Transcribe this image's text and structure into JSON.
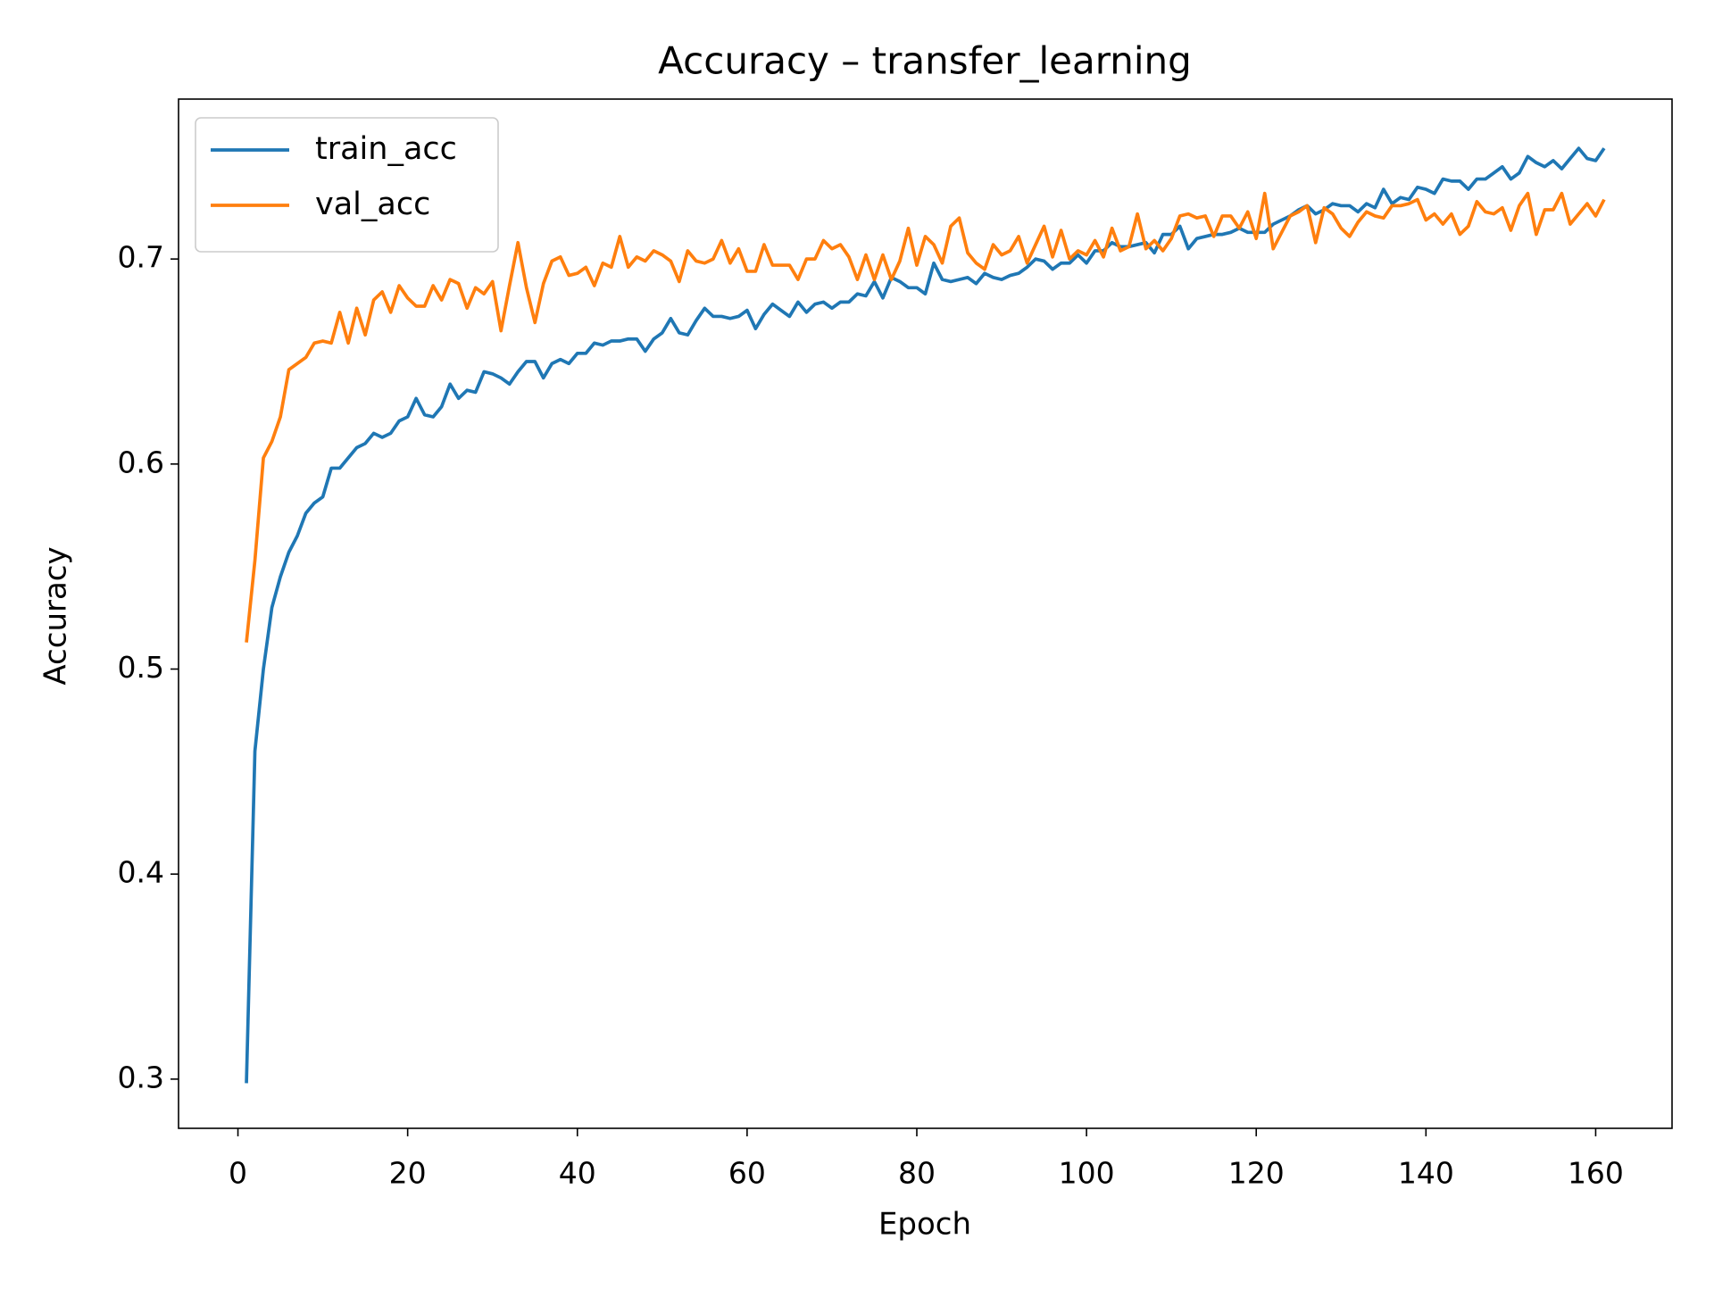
{
  "chart_data": {
    "type": "line",
    "title": "Accuracy – transfer_learning",
    "xlabel": "Epoch",
    "ylabel": "Accuracy",
    "x": [
      1,
      2,
      3,
      4,
      5,
      6,
      7,
      8,
      9,
      10,
      11,
      12,
      13,
      14,
      15,
      16,
      17,
      18,
      19,
      20,
      21,
      22,
      23,
      24,
      25,
      26,
      27,
      28,
      29,
      30,
      31,
      32,
      33,
      34,
      35,
      36,
      37,
      38,
      39,
      40,
      41,
      42,
      43,
      44,
      45,
      46,
      47,
      48,
      49,
      50,
      51,
      52,
      53,
      54,
      55,
      56,
      57,
      58,
      59,
      60,
      61,
      62,
      63,
      64,
      65,
      66,
      67,
      68,
      69,
      70,
      71,
      72,
      73,
      74,
      75,
      76,
      77,
      78,
      79,
      80,
      81,
      82,
      83,
      84,
      85,
      86,
      87,
      88,
      89,
      90,
      91,
      92,
      93,
      94,
      95,
      96,
      97,
      98,
      99,
      100,
      101,
      102,
      103,
      104,
      105,
      106,
      107,
      108,
      109,
      110,
      111,
      112,
      113,
      114,
      115,
      116,
      117,
      118,
      119,
      120,
      121,
      122,
      123,
      124,
      125,
      126,
      127,
      128,
      129,
      130,
      131,
      132,
      133,
      134,
      135,
      136,
      137,
      138,
      139,
      140,
      141,
      142,
      143,
      144,
      145,
      146,
      147,
      148,
      149,
      150,
      151,
      152,
      153,
      154,
      155,
      156,
      157,
      158,
      159,
      160,
      161
    ],
    "series": [
      {
        "name": "train_acc",
        "color": "#1f77b4",
        "values": [
          0.298,
          0.46,
          0.5,
          0.53,
          0.545,
          0.557,
          0.565,
          0.576,
          0.581,
          0.584,
          0.598,
          0.598,
          0.603,
          0.608,
          0.61,
          0.615,
          0.613,
          0.615,
          0.621,
          0.623,
          0.632,
          0.624,
          0.623,
          0.628,
          0.639,
          0.632,
          0.636,
          0.635,
          0.645,
          0.644,
          0.642,
          0.639,
          0.645,
          0.65,
          0.65,
          0.642,
          0.649,
          0.651,
          0.649,
          0.654,
          0.654,
          0.659,
          0.658,
          0.66,
          0.66,
          0.661,
          0.661,
          0.655,
          0.661,
          0.664,
          0.671,
          0.664,
          0.663,
          0.67,
          0.676,
          0.672,
          0.672,
          0.671,
          0.672,
          0.675,
          0.666,
          0.673,
          0.678,
          0.675,
          0.672,
          0.679,
          0.674,
          0.678,
          0.679,
          0.676,
          0.679,
          0.679,
          0.683,
          0.682,
          0.689,
          0.681,
          0.691,
          0.689,
          0.686,
          0.686,
          0.683,
          0.698,
          0.69,
          0.689,
          0.69,
          0.691,
          0.688,
          0.693,
          0.691,
          0.69,
          0.692,
          0.693,
          0.696,
          0.7,
          0.699,
          0.695,
          0.698,
          0.698,
          0.702,
          0.698,
          0.704,
          0.704,
          0.708,
          0.706,
          0.706,
          0.707,
          0.708,
          0.703,
          0.712,
          0.712,
          0.716,
          0.705,
          0.71,
          0.711,
          0.712,
          0.712,
          0.713,
          0.715,
          0.713,
          0.713,
          0.713,
          0.717,
          0.719,
          0.721,
          0.724,
          0.726,
          0.722,
          0.724,
          0.727,
          0.726,
          0.726,
          0.723,
          0.727,
          0.725,
          0.734,
          0.727,
          0.73,
          0.729,
          0.735,
          0.734,
          0.732,
          0.739,
          0.738,
          0.738,
          0.734,
          0.739,
          0.739,
          0.742,
          0.745,
          0.739,
          0.742,
          0.75,
          0.747,
          0.745,
          0.748,
          0.744,
          0.749,
          0.754,
          0.749,
          0.748,
          0.754
        ]
      },
      {
        "name": "val_acc",
        "color": "#ff7f0e",
        "values": [
          0.513,
          0.553,
          0.603,
          0.611,
          0.623,
          0.646,
          0.649,
          0.652,
          0.659,
          0.66,
          0.659,
          0.674,
          0.659,
          0.676,
          0.663,
          0.68,
          0.684,
          0.674,
          0.687,
          0.681,
          0.677,
          0.677,
          0.687,
          0.68,
          0.69,
          0.688,
          0.676,
          0.686,
          0.683,
          0.689,
          0.665,
          0.687,
          0.708,
          0.686,
          0.669,
          0.688,
          0.699,
          0.701,
          0.692,
          0.693,
          0.696,
          0.687,
          0.698,
          0.696,
          0.711,
          0.696,
          0.701,
          0.699,
          0.704,
          0.702,
          0.699,
          0.689,
          0.704,
          0.699,
          0.698,
          0.7,
          0.709,
          0.698,
          0.705,
          0.694,
          0.694,
          0.707,
          0.697,
          0.697,
          0.697,
          0.69,
          0.7,
          0.7,
          0.709,
          0.705,
          0.707,
          0.701,
          0.69,
          0.702,
          0.69,
          0.702,
          0.69,
          0.699,
          0.715,
          0.697,
          0.711,
          0.707,
          0.698,
          0.716,
          0.72,
          0.703,
          0.698,
          0.695,
          0.707,
          0.702,
          0.704,
          0.711,
          0.698,
          0.707,
          0.716,
          0.701,
          0.714,
          0.7,
          0.704,
          0.702,
          0.709,
          0.701,
          0.715,
          0.704,
          0.706,
          0.722,
          0.705,
          0.709,
          0.704,
          0.71,
          0.721,
          0.722,
          0.72,
          0.721,
          0.711,
          0.721,
          0.721,
          0.715,
          0.723,
          0.71,
          0.732,
          0.705,
          0.713,
          0.721,
          0.723,
          0.726,
          0.708,
          0.725,
          0.722,
          0.715,
          0.711,
          0.718,
          0.723,
          0.721,
          0.72,
          0.726,
          0.726,
          0.727,
          0.729,
          0.719,
          0.722,
          0.717,
          0.722,
          0.712,
          0.716,
          0.728,
          0.723,
          0.722,
          0.725,
          0.714,
          0.726,
          0.732,
          0.712,
          0.724,
          0.724,
          0.732,
          0.717,
          0.722,
          0.727,
          0.721,
          0.729
        ]
      }
    ],
    "xlim": [
      -7,
      169
    ],
    "xticks": [
      0,
      20,
      40,
      60,
      80,
      100,
      120,
      140,
      160
    ],
    "ylim": [
      0.276,
      0.778
    ],
    "yticks": [
      0.3,
      0.4,
      0.5,
      0.6,
      0.7
    ],
    "legend": "upper left",
    "grid": false
  }
}
